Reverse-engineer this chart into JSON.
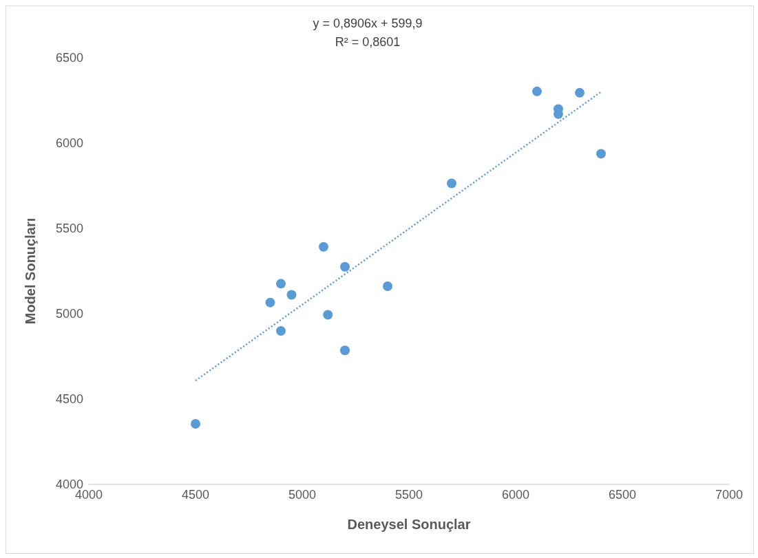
{
  "chart_data": {
    "type": "scatter",
    "xlabel": "Deneysel Sonuçlar",
    "ylabel": "Model Sonuçları",
    "annotations": [
      "y = 0,8906x + 599,9",
      "R² = 0,8601"
    ],
    "xlim": [
      4000,
      7000
    ],
    "xticks": [
      4000,
      4500,
      5000,
      5500,
      6000,
      6500,
      7000
    ],
    "ylim": [
      4000,
      6500
    ],
    "yticks": [
      4000,
      4500,
      5000,
      5500,
      6000,
      6500
    ],
    "grid": false,
    "series": [
      {
        "marker": "circle",
        "color": "#5b9bd5",
        "x": [
          4500,
          4850,
          4900,
          4900,
          4950,
          5100,
          5120,
          5200,
          5200,
          5400,
          5700,
          6100,
          6200,
          6200,
          6300,
          6400
        ],
        "values": [
          4355,
          5066,
          5176,
          4899,
          5111,
          5392,
          4994,
          5275,
          4785,
          5161,
          5764,
          6303,
          6200,
          6170,
          6295,
          5938
        ]
      },
      {
        "type": "line",
        "color": "#5b9bd5",
        "line_style": "dotted",
        "x": [
          4500,
          6400
        ],
        "values": [
          4608,
          6300
        ]
      }
    ]
  }
}
